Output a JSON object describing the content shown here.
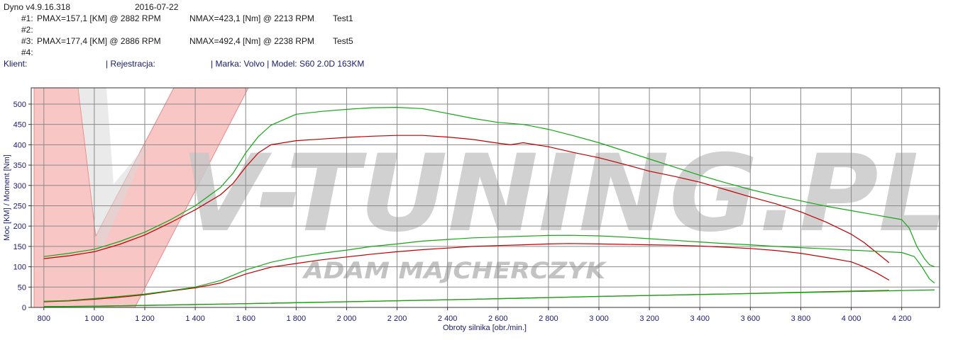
{
  "header": {
    "app_version": "Dyno v4.9.16.318",
    "date": "2016-07-22",
    "runs": [
      {
        "id": "#1:",
        "pmax": "PMAX=157,1 [KM] @ 2882 RPM",
        "nmax": "NMAX=423,1 [Nm] @ 2213 RPM",
        "name": "Test1"
      },
      {
        "id": "#2:",
        "pmax": "",
        "nmax": "",
        "name": ""
      },
      {
        "id": "#3:",
        "pmax": "PMAX=177,4 [KM] @ 2886 RPM",
        "nmax": "NMAX=492,4 [Nm] @ 2238 RPM",
        "name": "Test5"
      },
      {
        "id": "#4:",
        "pmax": "",
        "nmax": "",
        "name": ""
      }
    ],
    "client_label": "Klient:",
    "registration_label": "| Rejestracja:",
    "vehicle": "| Marka: Volvo | Model: S60 2.0D 163KM"
  },
  "watermark": {
    "brand": "V-TUNING.PL",
    "name": "ADAM MAJCHERCZYK"
  },
  "chart_data": {
    "type": "line",
    "xlabel": "Obroty silnika [obr./min.]",
    "ylabel": "Moc [KM] / Moment [Nm]",
    "xlim": [
      750,
      4350
    ],
    "ylim": [
      0,
      540
    ],
    "x_ticks": [
      "800",
      "1 000",
      "1 200",
      "1 400",
      "1 600",
      "1 800",
      "2 000",
      "2 200",
      "2 400",
      "2 600",
      "2 800",
      "3 000",
      "3 200",
      "3 400",
      "3 600",
      "3 800",
      "4 000",
      "4 200"
    ],
    "x_tick_values": [
      800,
      1000,
      1200,
      1400,
      1600,
      1800,
      2000,
      2200,
      2400,
      2600,
      2800,
      3000,
      3200,
      3400,
      3600,
      3800,
      4000,
      4200
    ],
    "y_ticks": [
      0,
      50,
      100,
      150,
      200,
      250,
      300,
      350,
      400,
      450,
      500
    ],
    "grid": true,
    "colors": {
      "run1": "#c00000",
      "run3": "#13a813",
      "loss1": "#7a5a00",
      "loss3": "#13a813"
    },
    "series": [
      {
        "run": "#1",
        "kind": "torque",
        "color": "#c00000",
        "x": [
          800,
          900,
          1000,
          1100,
          1200,
          1300,
          1400,
          1500,
          1550,
          1600,
          1650,
          1700,
          1800,
          1900,
          2000,
          2100,
          2200,
          2300,
          2400,
          2500,
          2600,
          2650,
          2700,
          2800,
          2900,
          3000,
          3100,
          3200,
          3300,
          3400,
          3500,
          3600,
          3700,
          3800,
          3900,
          4000,
          4050,
          4100,
          4150
        ],
        "y": [
          120,
          127,
          137,
          155,
          178,
          208,
          240,
          277,
          305,
          345,
          380,
          400,
          410,
          414,
          418,
          421,
          423,
          423,
          419,
          413,
          404,
          400,
          405,
          395,
          381,
          368,
          352,
          335,
          322,
          308,
          290,
          272,
          255,
          235,
          210,
          180,
          160,
          135,
          110
        ]
      },
      {
        "run": "#1",
        "kind": "power",
        "color": "#c00000",
        "x": [
          800,
          900,
          1000,
          1100,
          1200,
          1300,
          1400,
          1500,
          1600,
          1700,
          1800,
          1900,
          2000,
          2100,
          2200,
          2300,
          2400,
          2500,
          2600,
          2700,
          2800,
          2882,
          3000,
          3100,
          3200,
          3300,
          3400,
          3500,
          3600,
          3700,
          3800,
          3900,
          4000,
          4050,
          4100,
          4150
        ],
        "y": [
          14,
          16,
          20,
          25,
          31,
          40,
          48,
          60,
          82,
          99,
          108,
          117,
          124,
          131,
          137,
          142,
          146,
          150,
          152,
          154,
          156,
          157.1,
          156,
          155,
          154,
          153,
          151,
          148,
          145,
          140,
          133,
          123,
          112,
          100,
          85,
          67
        ]
      },
      {
        "run": "#3",
        "kind": "torque",
        "color": "#13a813",
        "x": [
          800,
          900,
          1000,
          1100,
          1200,
          1300,
          1400,
          1500,
          1550,
          1600,
          1650,
          1700,
          1800,
          1900,
          2000,
          2100,
          2200,
          2300,
          2400,
          2500,
          2600,
          2700,
          2800,
          2900,
          3000,
          3100,
          3200,
          3300,
          3400,
          3500,
          3600,
          3700,
          3800,
          3900,
          4000,
          4100,
          4200,
          4230,
          4260,
          4290,
          4310,
          4330
        ],
        "y": [
          125,
          133,
          143,
          162,
          185,
          215,
          250,
          295,
          330,
          380,
          420,
          448,
          475,
          482,
          487,
          491,
          492,
          489,
          477,
          465,
          455,
          450,
          438,
          422,
          405,
          385,
          365,
          345,
          325,
          307,
          290,
          275,
          262,
          249,
          238,
          227,
          216,
          195,
          150,
          120,
          105,
          100
        ]
      },
      {
        "run": "#3",
        "kind": "power",
        "color": "#13a813",
        "x": [
          800,
          900,
          1000,
          1100,
          1200,
          1300,
          1400,
          1500,
          1600,
          1700,
          1800,
          1900,
          2000,
          2100,
          2200,
          2300,
          2400,
          2500,
          2600,
          2700,
          2800,
          2886,
          3000,
          3100,
          3200,
          3300,
          3400,
          3500,
          3600,
          3700,
          3800,
          3900,
          4000,
          4100,
          4200,
          4250,
          4280,
          4310,
          4330
        ],
        "y": [
          15,
          17,
          22,
          27,
          33,
          41,
          50,
          66,
          92,
          111,
          124,
          133,
          141,
          150,
          156,
          163,
          167,
          171,
          173,
          175,
          177,
          177.4,
          176,
          173,
          169,
          165,
          161,
          157,
          154,
          150,
          147,
          144,
          141,
          138,
          135,
          125,
          100,
          70,
          60
        ]
      },
      {
        "run": "#1",
        "kind": "loss",
        "color": "#7a5a00",
        "x": [
          800,
          1000,
          1500,
          2000,
          2500,
          3000,
          3500,
          4000,
          4150
        ],
        "y": [
          2,
          3,
          8,
          14,
          20,
          27,
          33,
          40,
          42
        ]
      },
      {
        "run": "#3",
        "kind": "loss",
        "color": "#13a813",
        "x": [
          800,
          1000,
          1500,
          2000,
          2500,
          3000,
          3500,
          4000,
          4330
        ],
        "y": [
          2,
          3,
          8,
          14,
          20,
          27,
          33,
          39,
          43
        ]
      }
    ]
  }
}
